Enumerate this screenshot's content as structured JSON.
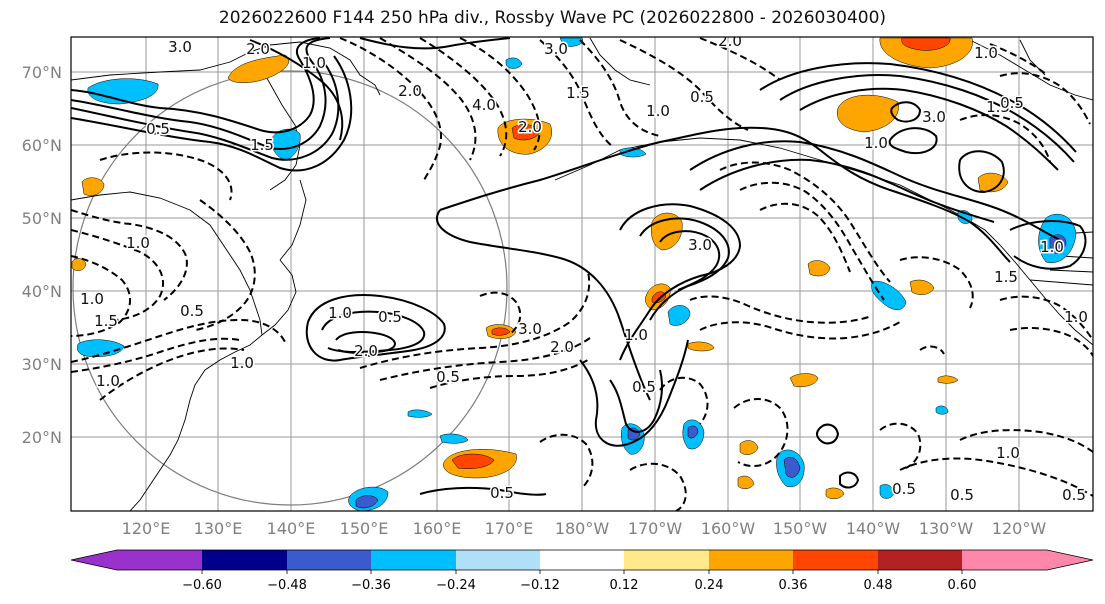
{
  "chart_data": {
    "type": "contour-map",
    "title": "2026022600 F144 250 hPa div., Rossby Wave PC (2026022800 - 2026030400)",
    "lat_ticks": [
      "70°N",
      "60°N",
      "50°N",
      "40°N",
      "30°N",
      "20°N"
    ],
    "lon_ticks": [
      "120°E",
      "130°E",
      "140°E",
      "150°E",
      "160°E",
      "170°E",
      "180°W",
      "170°W",
      "160°W",
      "150°W",
      "140°W",
      "130°W",
      "120°W"
    ],
    "colorbar": {
      "ticks": [
        "−0.60",
        "−0.48",
        "−0.36",
        "−0.24",
        "−0.12",
        "0.12",
        "0.24",
        "0.36",
        "0.48",
        "0.60"
      ],
      "colors": [
        "#9932cc",
        "#00008b",
        "#3a5bcc",
        "#00bfff",
        "#b0e0f8",
        "#ffffff",
        "#ffe98a",
        "#ffa500",
        "#ff4500",
        "#b22222",
        "#ff88aa"
      ]
    },
    "contour_labels": [
      "3.0",
      "2.0",
      "1.0",
      "0.5",
      "1.5",
      "2.0",
      "3.0",
      "2.0",
      "4.0",
      "1.5",
      "1.0",
      "0.5",
      "3.0",
      "1.0",
      "1.5",
      "2.0",
      "1.0",
      "0.5",
      "1.0",
      "1.0",
      "1.5",
      "0.5",
      "1.0",
      "1.0",
      "1.0",
      "3.0",
      "0.5",
      "2.0",
      "0.5",
      "3.0",
      "2.0",
      "1.0",
      "0.5",
      "1.5",
      "1.0",
      "1.0",
      "0.5",
      "0.5",
      "0.5",
      "0.5",
      "1.0"
    ]
  }
}
